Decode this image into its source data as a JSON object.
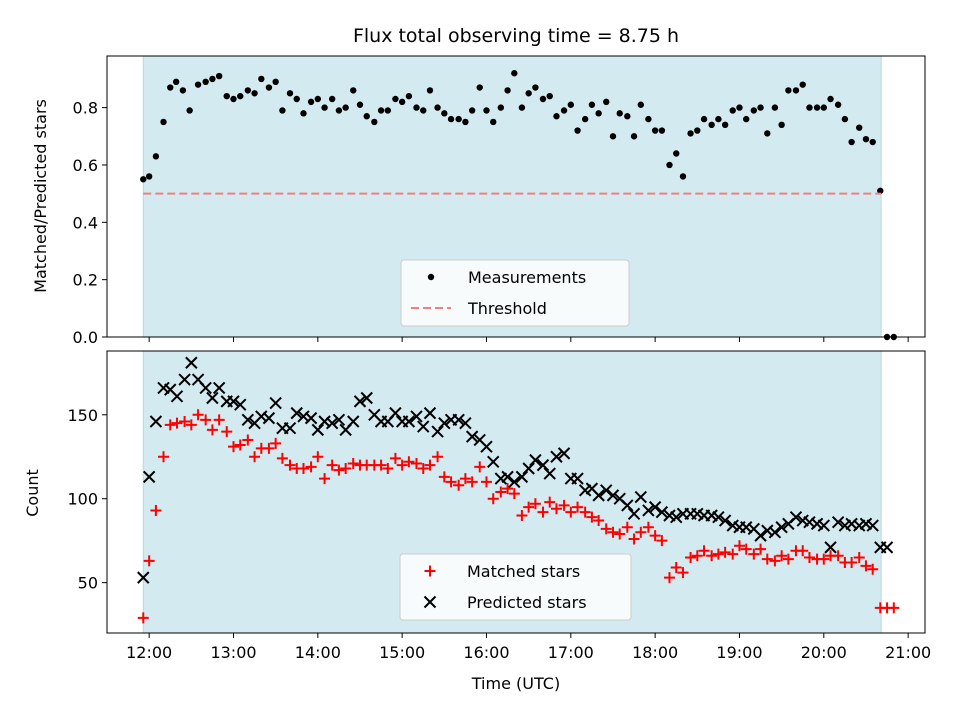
{
  "chart_data": [
    {
      "type": "scatter",
      "title": "Flux total observing time = 8.75 h",
      "xlabel": "",
      "ylabel": "Matched/Predicted stars",
      "xlim": [
        11.5,
        21.2
      ],
      "ylim": [
        0,
        0.98
      ],
      "yticks": [
        0,
        0.2,
        0.4,
        0.6,
        0.8
      ],
      "ytick_labels": [
        "0.0",
        "0.2",
        "0.4",
        "0.6",
        "0.8"
      ],
      "shaded_span": [
        11.93,
        20.68
      ],
      "shade_color": "#d4eaf1",
      "legend": "bottom-center",
      "series": [
        {
          "name": "Measurements",
          "marker": "dot",
          "color": "#000000",
          "x": [
            11.93,
            12.0,
            12.08,
            12.17,
            12.25,
            12.32,
            12.4,
            12.48,
            12.58,
            12.67,
            12.75,
            12.83,
            12.92,
            13.0,
            13.08,
            13.17,
            13.25,
            13.33,
            13.42,
            13.5,
            13.58,
            13.67,
            13.75,
            13.83,
            13.92,
            14.0,
            14.08,
            14.17,
            14.25,
            14.33,
            14.42,
            14.5,
            14.58,
            14.67,
            14.75,
            14.83,
            14.92,
            15.0,
            15.08,
            15.17,
            15.25,
            15.33,
            15.42,
            15.5,
            15.58,
            15.67,
            15.75,
            15.83,
            15.92,
            16.0,
            16.08,
            16.17,
            16.25,
            16.33,
            16.42,
            16.5,
            16.58,
            16.67,
            16.75,
            16.83,
            16.92,
            17.0,
            17.08,
            17.17,
            17.25,
            17.33,
            17.42,
            17.5,
            17.58,
            17.67,
            17.75,
            17.83,
            17.92,
            18.0,
            18.08,
            18.17,
            18.25,
            18.33,
            18.42,
            18.5,
            18.58,
            18.67,
            18.75,
            18.83,
            18.92,
            19.0,
            19.08,
            19.17,
            19.25,
            19.33,
            19.42,
            19.5,
            19.58,
            19.67,
            19.75,
            19.83,
            19.92,
            20.0,
            20.08,
            20.17,
            20.25,
            20.33,
            20.42,
            20.5,
            20.58,
            20.67,
            20.75,
            20.83
          ],
          "y": [
            0.55,
            0.56,
            0.63,
            0.75,
            0.87,
            0.89,
            0.86,
            0.79,
            0.88,
            0.89,
            0.9,
            0.91,
            0.84,
            0.83,
            0.84,
            0.86,
            0.85,
            0.9,
            0.87,
            0.89,
            0.79,
            0.85,
            0.83,
            0.78,
            0.82,
            0.83,
            0.8,
            0.83,
            0.79,
            0.8,
            0.86,
            0.81,
            0.77,
            0.75,
            0.79,
            0.79,
            0.83,
            0.82,
            0.84,
            0.8,
            0.79,
            0.86,
            0.8,
            0.78,
            0.76,
            0.76,
            0.75,
            0.79,
            0.87,
            0.79,
            0.75,
            0.8,
            0.86,
            0.92,
            0.8,
            0.85,
            0.87,
            0.83,
            0.84,
            0.77,
            0.79,
            0.81,
            0.72,
            0.76,
            0.81,
            0.78,
            0.82,
            0.7,
            0.78,
            0.77,
            0.7,
            0.81,
            0.76,
            0.72,
            0.72,
            0.6,
            0.64,
            0.56,
            0.71,
            0.72,
            0.76,
            0.74,
            0.76,
            0.74,
            0.79,
            0.8,
            0.76,
            0.79,
            0.8,
            0.71,
            0.8,
            0.74,
            0.86,
            0.86,
            0.88,
            0.8,
            0.8,
            0.8,
            0.83,
            0.81,
            0.76,
            0.68,
            0.73,
            0.69,
            0.68,
            0.51,
            0.0,
            0.0
          ]
        },
        {
          "name": "Threshold",
          "marker": "dashed-line",
          "color": "#f08080",
          "x": [
            11.93,
            20.68
          ],
          "y": [
            0.5,
            0.5
          ]
        }
      ]
    },
    {
      "type": "scatter",
      "title": "",
      "xlabel": "Time (UTC)",
      "ylabel": "Count",
      "xlim": [
        11.5,
        21.2
      ],
      "ylim": [
        20,
        188
      ],
      "yticks": [
        50,
        100,
        150
      ],
      "ytick_labels": [
        "50",
        "100",
        "150"
      ],
      "xticks": [
        12,
        13,
        14,
        15,
        16,
        17,
        18,
        19,
        20,
        21
      ],
      "xtick_labels": [
        "12:00",
        "13:00",
        "14:00",
        "15:00",
        "16:00",
        "17:00",
        "18:00",
        "19:00",
        "20:00",
        "21:00"
      ],
      "shaded_span": [
        11.93,
        20.68
      ],
      "shade_color": "#d4eaf1",
      "legend": "bottom-center",
      "series": [
        {
          "name": "Matched stars",
          "marker": "plus",
          "color": "#ff0000",
          "x": [
            11.93,
            12.0,
            12.08,
            12.17,
            12.25,
            12.33,
            12.42,
            12.5,
            12.58,
            12.67,
            12.75,
            12.83,
            12.92,
            13.0,
            13.08,
            13.17,
            13.25,
            13.33,
            13.42,
            13.5,
            13.58,
            13.67,
            13.75,
            13.83,
            13.92,
            14.0,
            14.08,
            14.17,
            14.25,
            14.33,
            14.42,
            14.5,
            14.58,
            14.67,
            14.75,
            14.83,
            14.92,
            15.0,
            15.08,
            15.17,
            15.25,
            15.33,
            15.42,
            15.5,
            15.58,
            15.67,
            15.75,
            15.83,
            15.92,
            16.0,
            16.08,
            16.17,
            16.25,
            16.33,
            16.42,
            16.5,
            16.58,
            16.67,
            16.75,
            16.83,
            16.92,
            17.0,
            17.08,
            17.17,
            17.25,
            17.33,
            17.42,
            17.5,
            17.58,
            17.67,
            17.75,
            17.83,
            17.92,
            18.0,
            18.08,
            18.17,
            18.25,
            18.33,
            18.42,
            18.5,
            18.58,
            18.67,
            18.75,
            18.83,
            18.92,
            19.0,
            19.08,
            19.17,
            19.25,
            19.33,
            19.42,
            19.5,
            19.58,
            19.67,
            19.75,
            19.83,
            19.92,
            20.0,
            20.08,
            20.17,
            20.25,
            20.33,
            20.42,
            20.5,
            20.58,
            20.67,
            20.75,
            20.83
          ],
          "y": [
            29,
            63,
            93,
            125,
            144,
            145,
            146,
            144,
            150,
            147,
            141,
            147,
            140,
            131,
            132,
            135,
            125,
            130,
            130,
            133,
            124,
            120,
            118,
            118,
            119,
            125,
            112,
            120,
            117,
            118,
            121,
            120,
            120,
            120,
            120,
            118,
            124,
            120,
            122,
            121,
            118,
            120,
            125,
            113,
            110,
            108,
            112,
            110,
            119,
            110,
            100,
            104,
            106,
            103,
            90,
            95,
            97,
            92,
            98,
            94,
            96,
            92,
            95,
            92,
            89,
            87,
            82,
            80,
            79,
            83,
            76,
            80,
            83,
            78,
            75,
            53,
            59,
            56,
            65,
            66,
            69,
            66,
            67,
            68,
            67,
            72,
            70,
            67,
            70,
            64,
            63,
            66,
            64,
            69,
            69,
            65,
            64,
            64,
            66,
            66,
            62,
            62,
            65,
            60,
            58,
            35,
            35,
            35
          ]
        },
        {
          "name": "Predicted stars",
          "marker": "x",
          "color": "#000000",
          "x": [
            11.93,
            12.0,
            12.08,
            12.17,
            12.25,
            12.33,
            12.42,
            12.5,
            12.58,
            12.67,
            12.75,
            12.83,
            12.92,
            13.0,
            13.08,
            13.17,
            13.25,
            13.33,
            13.42,
            13.5,
            13.58,
            13.67,
            13.75,
            13.83,
            13.92,
            14.0,
            14.08,
            14.17,
            14.25,
            14.33,
            14.42,
            14.5,
            14.58,
            14.67,
            14.75,
            14.83,
            14.92,
            15.0,
            15.08,
            15.17,
            15.25,
            15.33,
            15.42,
            15.5,
            15.58,
            15.67,
            15.75,
            15.83,
            15.92,
            16.0,
            16.08,
            16.17,
            16.25,
            16.33,
            16.42,
            16.5,
            16.58,
            16.67,
            16.75,
            16.83,
            16.92,
            17.0,
            17.08,
            17.17,
            17.25,
            17.33,
            17.42,
            17.5,
            17.58,
            17.67,
            17.75,
            17.83,
            17.92,
            18.0,
            18.08,
            18.17,
            18.25,
            18.33,
            18.42,
            18.5,
            18.58,
            18.67,
            18.75,
            18.83,
            18.92,
            19.0,
            19.08,
            19.17,
            19.25,
            19.33,
            19.42,
            19.5,
            19.58,
            19.67,
            19.75,
            19.83,
            19.92,
            20.0,
            20.08,
            20.17,
            20.25,
            20.33,
            20.42,
            20.5,
            20.58,
            20.67,
            20.75
          ],
          "y": [
            53,
            113,
            146,
            166,
            165,
            161,
            171,
            181,
            171,
            166,
            160,
            166,
            158,
            158,
            156,
            147,
            145,
            149,
            148,
            157,
            142,
            142,
            151,
            149,
            148,
            141,
            146,
            145,
            147,
            141,
            146,
            158,
            160,
            150,
            146,
            146,
            151,
            146,
            146,
            149,
            143,
            151,
            140,
            145,
            147,
            147,
            145,
            137,
            135,
            131,
            122,
            112,
            113,
            110,
            113,
            118,
            123,
            120,
            115,
            125,
            127,
            112,
            112,
            105,
            106,
            102,
            105,
            102,
            100,
            96,
            91,
            101,
            93,
            95,
            92,
            90,
            89,
            91,
            91,
            91,
            90,
            90,
            89,
            87,
            84,
            83,
            83,
            82,
            78,
            81,
            80,
            83,
            85,
            89,
            87,
            86,
            85,
            84,
            71,
            86,
            84,
            85,
            84,
            85,
            84,
            71,
            71
          ]
        }
      ]
    }
  ]
}
